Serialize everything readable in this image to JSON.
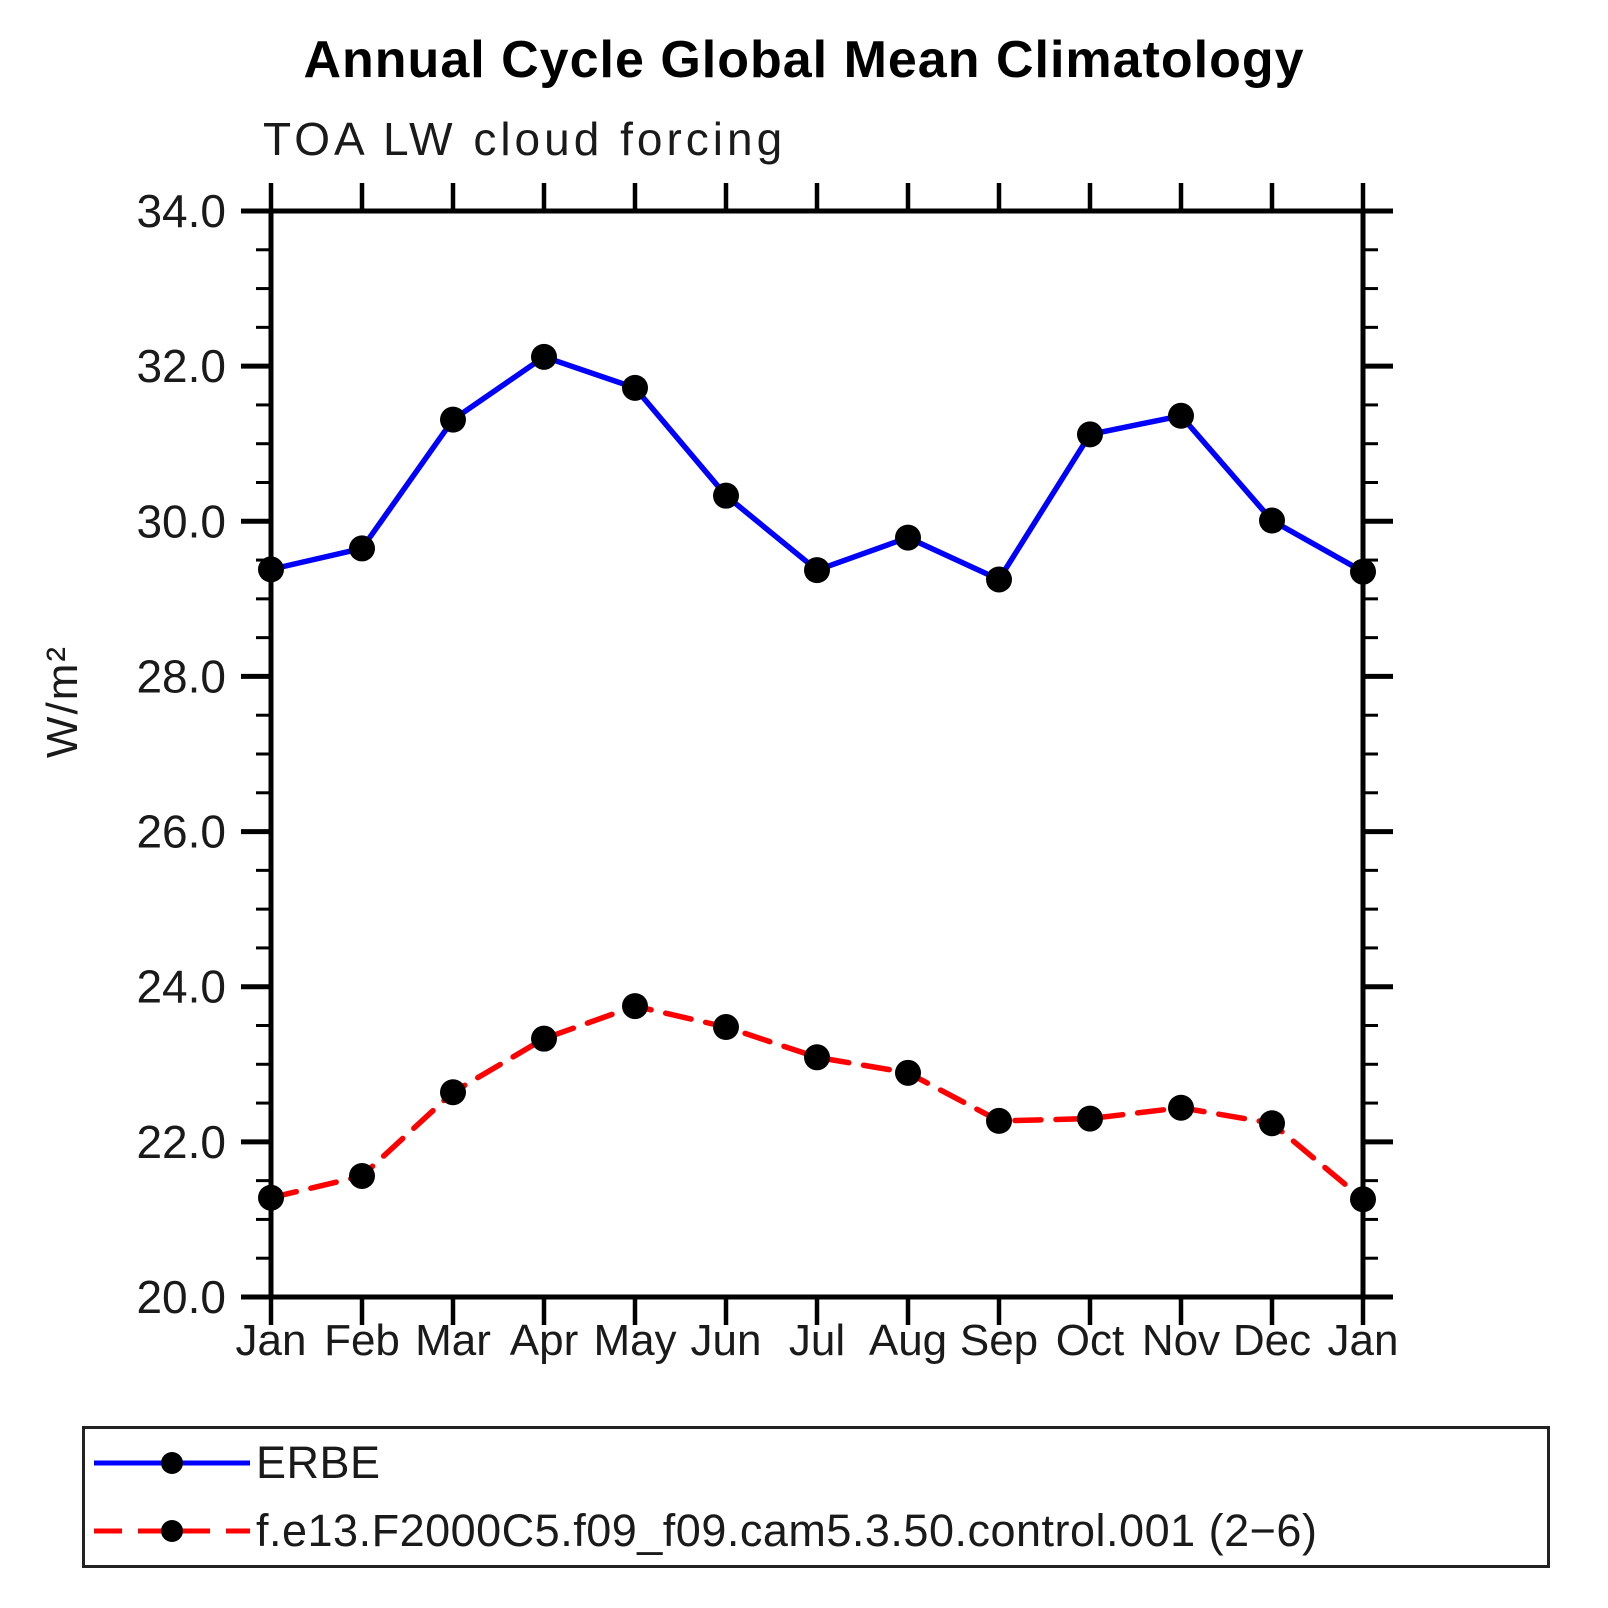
{
  "title": "Annual Cycle Global Mean Climatology",
  "subtitle": "TOA LW cloud forcing",
  "ylabel": "W/m²",
  "colors": {
    "background": "#ffffff",
    "axis": "#000000",
    "text": "#1a1a1a",
    "erbe_line": "#0000ff",
    "model_line": "#ff0000",
    "marker": "#000000"
  },
  "chart_data": {
    "type": "line",
    "title": "Annual Cycle Global Mean Climatology",
    "subtitle": "TOA LW cloud forcing",
    "xlabel": "",
    "ylabel": "W/m²",
    "x_categories": [
      "Jan",
      "Feb",
      "Mar",
      "Apr",
      "May",
      "Jun",
      "Jul",
      "Aug",
      "Sep",
      "Oct",
      "Nov",
      "Dec",
      "Jan"
    ],
    "ylim": [
      20.0,
      34.0
    ],
    "ytick_step": 2.0,
    "ytick_minor_step": 0.5,
    "ytick_labels": [
      "20.0",
      "22.0",
      "24.0",
      "26.0",
      "28.0",
      "30.0",
      "32.0",
      "34.0"
    ],
    "grid": false,
    "legend_position": "bottom-left-box",
    "series": [
      {
        "name": "ERBE",
        "color": "#0000ff",
        "line_style": "solid",
        "marker": "filled-circle",
        "marker_color": "#000000",
        "values": [
          29.38,
          29.65,
          31.31,
          32.12,
          31.72,
          30.33,
          29.37,
          29.79,
          29.25,
          31.12,
          31.36,
          30.01,
          29.35
        ]
      },
      {
        "name": "f.e13.F2000C5.f09_f09.cam5.3.50.control.001 (2−6)",
        "color": "#ff0000",
        "line_style": "dashed",
        "marker": "filled-circle",
        "marker_color": "#000000",
        "values": [
          21.28,
          21.56,
          22.64,
          23.33,
          23.75,
          23.48,
          23.09,
          22.89,
          22.27,
          22.3,
          22.44,
          22.24,
          21.26
        ]
      }
    ]
  }
}
